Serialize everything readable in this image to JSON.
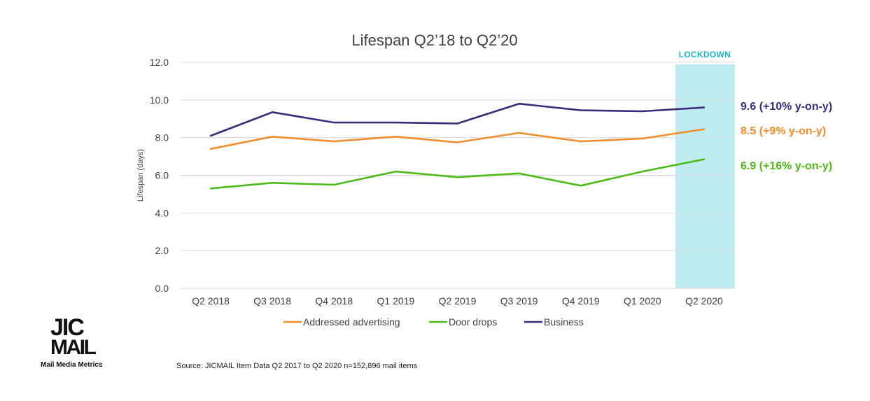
{
  "chart_data": {
    "type": "line",
    "title": "Lifespan Q2’18 to Q2’20",
    "ylabel": "Lifespan (days)",
    "xlabel": "",
    "ylim": [
      0,
      12
    ],
    "yticks": [
      "0.0",
      "2.0",
      "4.0",
      "6.0",
      "8.0",
      "10.0",
      "12.0"
    ],
    "categories": [
      "Q2 2018",
      "Q3 2018",
      "Q4 2018",
      "Q1 2019",
      "Q2 2019",
      "Q3 2019",
      "Q4 2019",
      "Q1 2020",
      "Q2 2020"
    ],
    "series": [
      {
        "name": "Addressed advertising",
        "color": "#f28c2c",
        "values": [
          7.4,
          8.05,
          7.8,
          8.05,
          7.75,
          8.25,
          7.8,
          7.95,
          8.45
        ],
        "end_label": "8.5 (+9% y-on-y)"
      },
      {
        "name": "Door drops",
        "color": "#4cbb17",
        "values": [
          5.3,
          5.6,
          5.5,
          6.2,
          5.9,
          6.1,
          5.45,
          6.2,
          6.85
        ],
        "end_label": "6.9 (+16% y-on-y)"
      },
      {
        "name": "Business",
        "color": "#3c2b7d",
        "values": [
          8.1,
          9.35,
          8.8,
          8.8,
          8.75,
          9.8,
          9.45,
          9.4,
          9.6
        ],
        "end_label": "9.6 (+10% y-on-y)"
      }
    ],
    "highlight": {
      "label": "LOCKDOWN",
      "category": "Q2 2020",
      "color": "#bdebf0"
    },
    "legend_position": "bottom"
  },
  "source": "Source: JICMAIL Item Data Q2 2017 to Q2 2020 n=152,896 mail items",
  "logo": {
    "line1": "JIC",
    "line2": "MAIL",
    "tagline": "Mail Media Metrics"
  }
}
